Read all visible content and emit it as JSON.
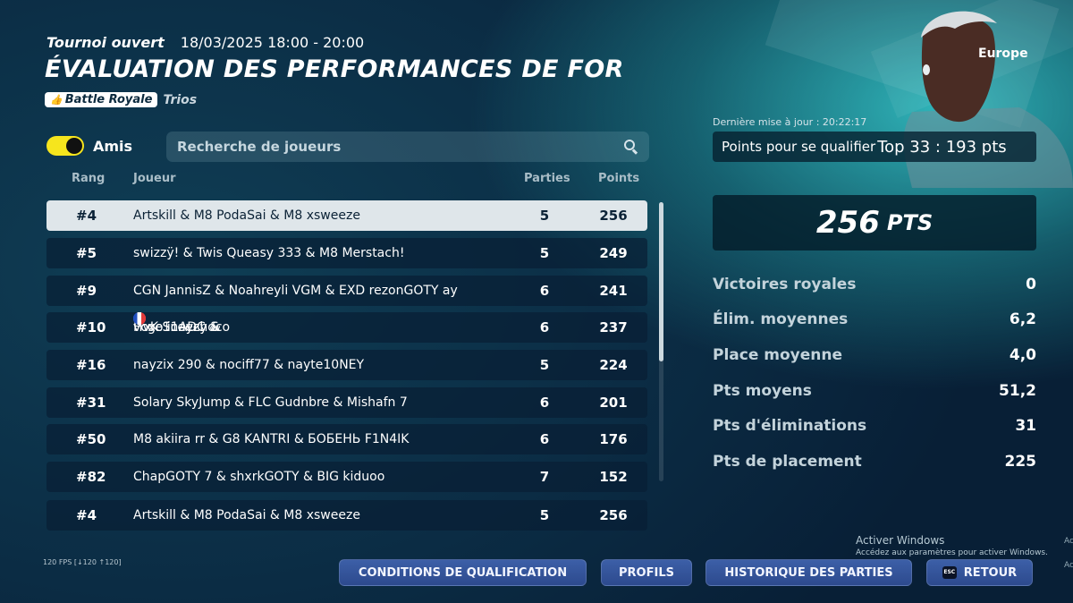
{
  "header": {
    "mode_label": "Tournoi ouvert",
    "datetime": "18/03/2025 18:00 - 20:00",
    "title": "ÉVALUATION DES PERFORMANCES DE FOR",
    "tag_primary": "Battle Royale",
    "tag_secondary": "Trios"
  },
  "filters": {
    "friends_label": "Amis",
    "friends_on": true,
    "search_placeholder": "Recherche de joueurs",
    "search_value": ""
  },
  "table": {
    "columns": {
      "rank": "Rang",
      "player": "Joueur",
      "games": "Parties",
      "points": "Points"
    },
    "rows": [
      {
        "rank": "#4",
        "player": "Artskill & M8 PodaSai & M8 xsweeze",
        "games": "5",
        "points": "256",
        "selected": true
      },
      {
        "rank": "#5",
        "player": "swizzÿ! & Twis Queasy 333 & M8 Merstach!",
        "games": "5",
        "points": "249"
      },
      {
        "rank": "#9",
        "player": "CGN JannisZ & Noahreyli VGM & EXD rezonGOTY ay",
        "games": "6",
        "points": "241"
      },
      {
        "rank": "#10",
        "player_parts": [
          "HvK Snayzy &",
          "voxe11ADC &",
          "vcgo iceechoco"
        ],
        "flags": true,
        "games": "6",
        "points": "237"
      },
      {
        "rank": "#16",
        "player": "nayzix 290 & nociff77 & nayte10NEY",
        "games": "5",
        "points": "224"
      },
      {
        "rank": "#31",
        "player": "Solary SkyJump & FLC Gudnbre & Mishafn 7",
        "games": "6",
        "points": "201"
      },
      {
        "rank": "#50",
        "player": "M8 akiira rr & G8 KANTRI & БОБЕНЬ F1N4IK",
        "games": "6",
        "points": "176"
      },
      {
        "rank": "#82",
        "player": "ChapGOTY 7 & shxrkGOTY & BIG kiduoo",
        "games": "7",
        "points": "152"
      },
      {
        "rank": "#4",
        "player": "Artskill & M8 PodaSai & M8 xsweeze",
        "games": "5",
        "points": "256"
      }
    ]
  },
  "panel": {
    "region": "Europe",
    "last_update": "Dernière mise à jour : 20:22:17",
    "qualify_label": "Points pour se qualifier",
    "qualify_value": "Top 33 : 193 pts",
    "score_value": "256",
    "score_unit": "PTS",
    "stats": [
      {
        "label": "Victoires royales",
        "value": "0"
      },
      {
        "label": "Élim. moyennes",
        "value": "6,2"
      },
      {
        "label": "Place moyenne",
        "value": "4,0"
      },
      {
        "label": "Pts moyens",
        "value": "51,2"
      },
      {
        "label": "Pts d'éliminations",
        "value": "31"
      },
      {
        "label": "Pts de placement",
        "value": "225"
      }
    ]
  },
  "footer": {
    "fps": "120 FPS [↓120 ↑120]",
    "buttons": {
      "conditions": "CONDITIONS DE QUALIFICATION",
      "profiles": "PROFILS",
      "history": "HISTORIQUE DES PARTIES",
      "back": "RETOUR",
      "esc_key": "ESC"
    }
  },
  "system": {
    "activate_title": "Activer Windows",
    "activate_sub": "Accédez aux paramètres pour activer Windows.",
    "edge_1": "Ac",
    "edge_2": "Ac"
  },
  "colors": {
    "toggle_on": "#f6e51d",
    "button_blue": "#3c5fa7",
    "selected_row": "#dfe6ea"
  },
  "icons": [
    "thumbs-up-icon",
    "search-icon",
    "france-flag-icon",
    "esc-key-icon"
  ]
}
